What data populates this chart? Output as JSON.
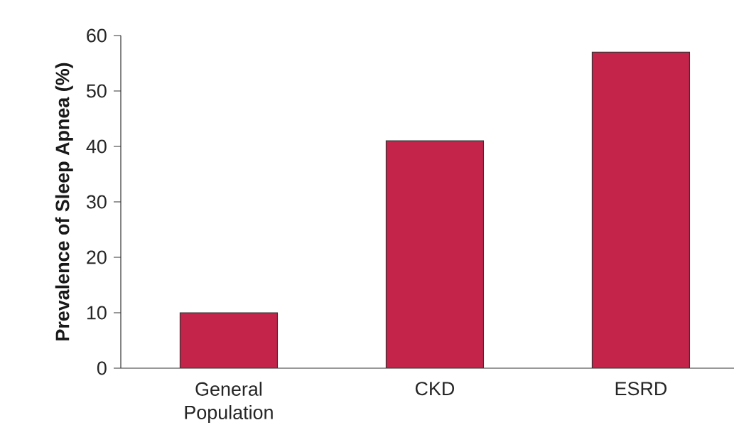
{
  "chart_data": {
    "type": "bar",
    "ylabel": "Prevalence of Sleep Apnea (%)",
    "categories": [
      "General Population",
      "CKD",
      "ESRD"
    ],
    "values": [
      10,
      41,
      57
    ],
    "color": "#c4244a",
    "ylim": [
      0,
      60
    ],
    "yticks": [
      0,
      10,
      20,
      30,
      40,
      50,
      60
    ]
  }
}
